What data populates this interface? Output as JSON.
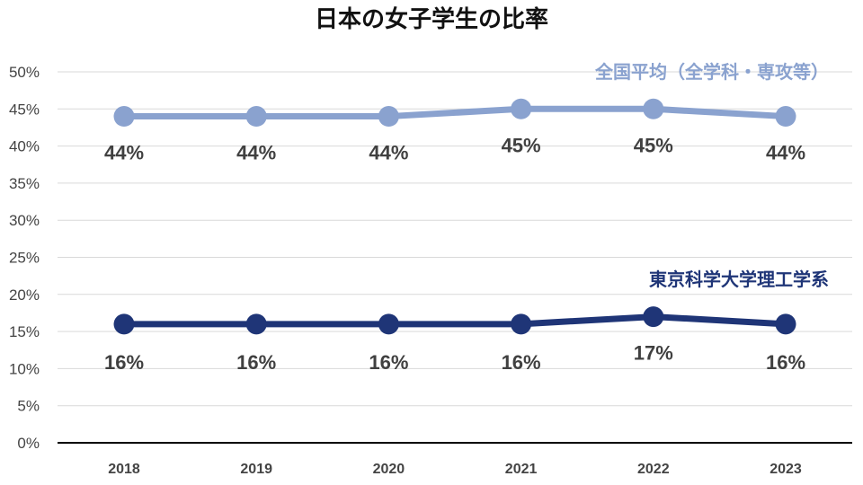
{
  "chart_data": {
    "type": "line",
    "title": "日本の女子学生の比率",
    "x": [
      "2018",
      "2019",
      "2020",
      "2021",
      "2022",
      "2023"
    ],
    "ylim": [
      0,
      50
    ],
    "yticks": [
      "0%",
      "5%",
      "10%",
      "15%",
      "20%",
      "25%",
      "30%",
      "35%",
      "40%",
      "45%",
      "50%"
    ],
    "grid": true,
    "series": [
      {
        "name": "全国平均（全学科・専攻等）",
        "values": [
          44,
          44,
          44,
          45,
          45,
          44
        ],
        "labels": [
          "44%",
          "44%",
          "44%",
          "45%",
          "45%",
          "44%"
        ],
        "color": "#8aa2cf"
      },
      {
        "name": "東京科学大学理工学系",
        "values": [
          16,
          16,
          16,
          16,
          17,
          16
        ],
        "labels": [
          "16%",
          "16%",
          "16%",
          "16%",
          "17%",
          "16%"
        ],
        "color": "#1f3577"
      }
    ]
  }
}
